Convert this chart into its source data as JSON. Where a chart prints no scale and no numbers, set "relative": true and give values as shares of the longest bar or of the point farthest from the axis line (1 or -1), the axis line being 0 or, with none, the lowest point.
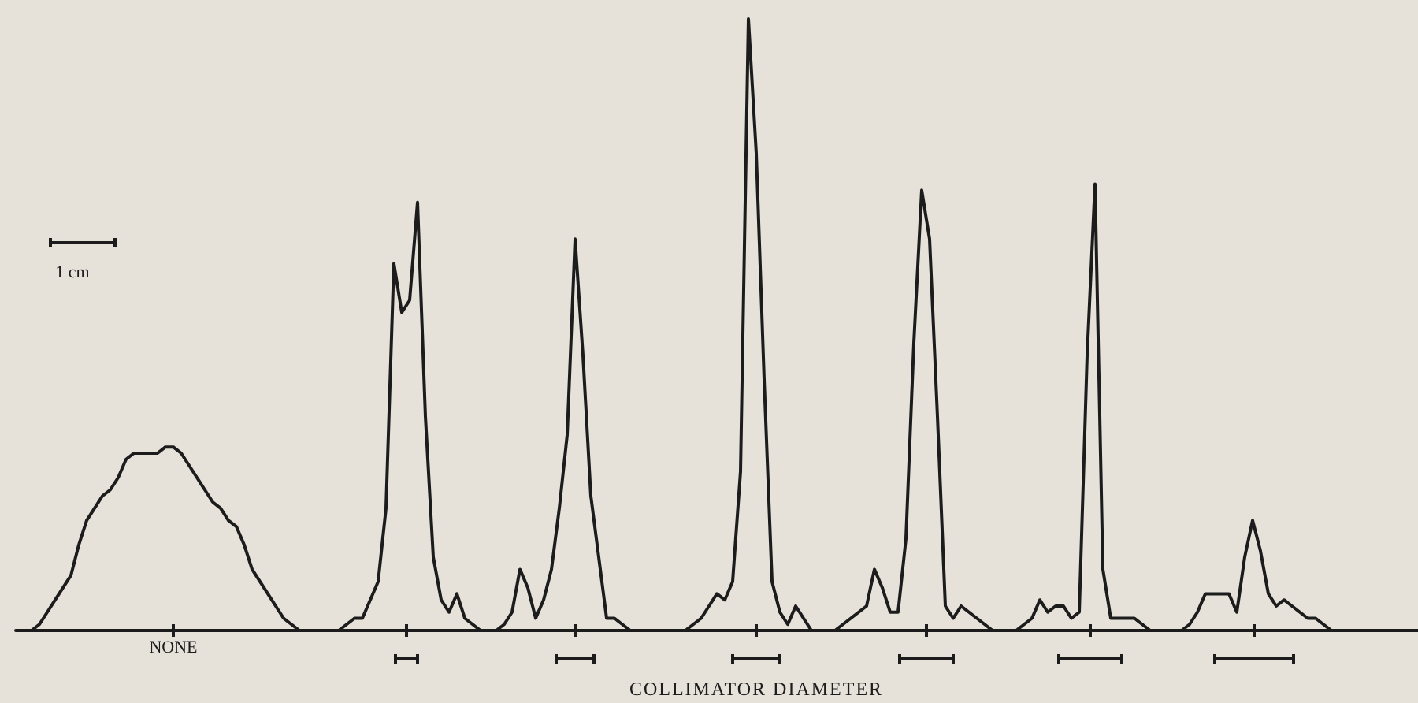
{
  "chart_data": {
    "type": "line",
    "relative": true,
    "xlabel": "COLLIMATOR DIAMETER",
    "annotations": [
      "1 cm",
      "NONE"
    ],
    "categories": [
      null,
      null,
      null,
      null,
      null,
      null,
      null,
      null,
      null,
      null,
      null,
      null,
      null,
      null,
      null,
      null,
      null,
      null,
      null,
      null,
      null,
      null,
      null,
      null,
      null,
      null,
      null,
      null,
      null,
      null,
      null,
      null,
      null,
      null,
      null,
      null,
      null,
      null,
      null,
      null,
      null,
      null,
      null,
      null,
      null,
      null,
      null,
      null,
      null,
      null,
      null,
      null,
      null,
      null,
      null,
      null,
      null,
      null,
      null,
      null,
      null,
      null,
      null,
      null,
      null,
      null,
      null,
      null,
      null,
      null,
      null,
      null,
      null,
      null,
      null,
      null,
      null,
      null,
      null,
      null,
      null,
      null,
      null,
      null,
      null,
      null,
      null,
      null,
      null,
      null,
      null,
      null,
      null,
      null,
      null,
      null,
      null,
      null,
      null,
      null,
      null,
      null,
      null,
      null,
      null,
      null,
      null,
      null,
      null,
      null,
      null,
      null,
      null,
      null,
      null,
      null,
      null,
      null,
      null,
      null,
      null,
      null,
      null,
      null,
      null,
      null,
      null,
      null,
      null,
      null,
      null,
      null,
      null,
      null,
      null,
      null,
      null,
      null,
      null,
      null,
      null,
      null,
      null,
      null,
      null,
      null,
      null,
      null,
      null,
      null,
      null,
      null,
      null,
      null,
      null,
      null,
      null,
      null,
      null,
      null,
      null,
      null,
      null,
      null,
      null,
      null,
      null,
      null,
      null,
      null,
      null,
      null,
      null,
      null,
      null,
      null,
      null,
      null,
      null
    ],
    "series": [
      {
        "color": "#1c1c1c",
        "values": [
          0,
          0,
          0,
          0.01,
          0.03,
          0.05,
          0.07,
          0.09,
          0.14,
          0.18,
          0.2,
          0.22,
          0.23,
          0.25,
          0.28,
          0.29,
          0.29,
          0.29,
          0.29,
          0.3,
          0.3,
          0.29,
          0.27,
          0.25,
          0.23,
          0.21,
          0.2,
          0.18,
          0.17,
          0.14,
          0.1,
          0.08,
          0.06,
          0.04,
          0.02,
          0.01,
          0,
          0,
          0,
          0,
          0,
          0,
          0.01,
          0.02,
          0.02,
          0.05,
          0.08,
          0.2,
          0.6,
          0.52,
          0.54,
          0.7,
          0.35,
          0.12,
          0.05,
          0.03,
          0.06,
          0.02,
          0.01,
          0,
          0,
          0,
          0.01,
          0.03,
          0.1,
          0.07,
          0.02,
          0.05,
          0.1,
          0.2,
          0.32,
          0.64,
          0.45,
          0.22,
          0.12,
          0.02,
          0.02,
          0.01,
          0,
          0,
          0,
          0,
          0,
          0,
          0,
          0,
          0.01,
          0.02,
          0.04,
          0.06,
          0.05,
          0.08,
          0.26,
          1,
          0.78,
          0.41,
          0.08,
          0.03,
          0.01,
          0.04,
          0.02,
          0,
          0,
          0,
          0,
          0.01,
          0.02,
          0.03,
          0.04,
          0.1,
          0.07,
          0.03,
          0.03,
          0.15,
          0.47,
          0.72,
          0.64,
          0.35,
          0.04,
          0.02,
          0.04,
          0.03,
          0.02,
          0.01,
          0,
          0,
          0,
          0,
          0.01,
          0.02,
          0.05,
          0.03,
          0.04,
          0.04,
          0.02,
          0.03,
          0.45,
          0.73,
          0.1,
          0.02,
          0.02,
          0.02,
          0.02,
          0.01,
          0,
          0,
          0,
          0,
          0,
          0.01,
          0.03,
          0.06,
          0.06,
          0.06,
          0.06,
          0.03,
          0.12,
          0.18,
          0.13,
          0.06,
          0.04,
          0.05,
          0.04,
          0.03,
          0.02,
          0.02,
          0.01,
          0,
          0,
          0,
          0,
          0,
          0,
          0,
          0,
          0,
          0,
          0,
          0
        ]
      }
    ]
  }
}
